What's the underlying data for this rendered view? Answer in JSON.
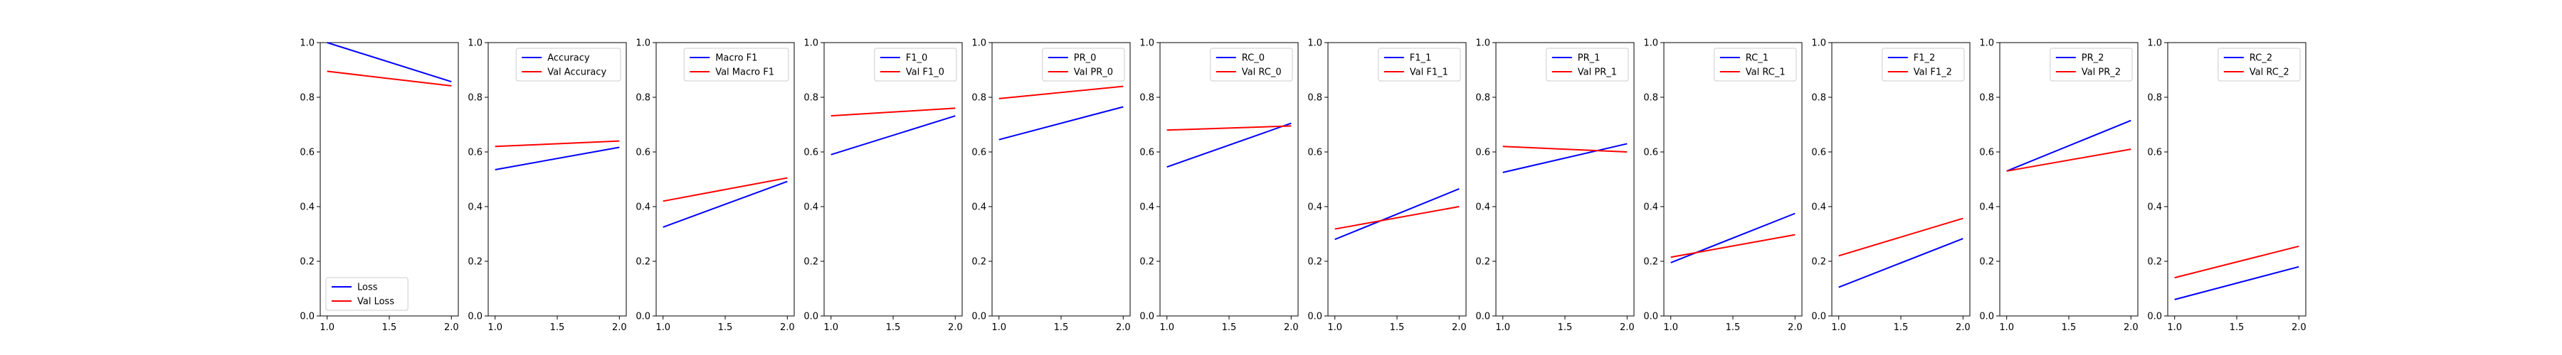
{
  "colors": {
    "train": "#0000ff",
    "val": "#ff0000"
  },
  "chart_data": [
    {
      "type": "line",
      "x": [
        1.0,
        2.0
      ],
      "xlim": [
        1.0,
        2.0
      ],
      "ylim": [
        0.0,
        1.0
      ],
      "legend_position": "lower-left",
      "series": [
        {
          "name": "Loss",
          "values": [
            1.0,
            0.857
          ]
        },
        {
          "name": "Val Loss",
          "values": [
            0.895,
            0.842
          ]
        }
      ]
    },
    {
      "type": "line",
      "x": [
        1.0,
        2.0
      ],
      "xlim": [
        1.0,
        2.0
      ],
      "ylim": [
        0.0,
        1.0
      ],
      "legend_position": "upper-right",
      "series": [
        {
          "name": "Accuracy",
          "values": [
            0.535,
            0.617
          ]
        },
        {
          "name": "Val Accuracy",
          "values": [
            0.62,
            0.64
          ]
        }
      ]
    },
    {
      "type": "line",
      "x": [
        1.0,
        2.0
      ],
      "xlim": [
        1.0,
        2.0
      ],
      "ylim": [
        0.0,
        1.0
      ],
      "legend_position": "upper-right",
      "series": [
        {
          "name": "Macro F1",
          "values": [
            0.325,
            0.492
          ]
        },
        {
          "name": "Val Macro F1",
          "values": [
            0.42,
            0.505
          ]
        }
      ]
    },
    {
      "type": "line",
      "x": [
        1.0,
        2.0
      ],
      "xlim": [
        1.0,
        2.0
      ],
      "ylim": [
        0.0,
        1.0
      ],
      "legend_position": "upper-right",
      "series": [
        {
          "name": "F1_0",
          "values": [
            0.59,
            0.732
          ]
        },
        {
          "name": "Val F1_0",
          "values": [
            0.732,
            0.76
          ]
        }
      ]
    },
    {
      "type": "line",
      "x": [
        1.0,
        2.0
      ],
      "xlim": [
        1.0,
        2.0
      ],
      "ylim": [
        0.0,
        1.0
      ],
      "legend_position": "upper-right",
      "series": [
        {
          "name": "PR_0",
          "values": [
            0.645,
            0.765
          ]
        },
        {
          "name": "Val PR_0",
          "values": [
            0.795,
            0.84
          ]
        }
      ]
    },
    {
      "type": "line",
      "x": [
        1.0,
        2.0
      ],
      "xlim": [
        1.0,
        2.0
      ],
      "ylim": [
        0.0,
        1.0
      ],
      "legend_position": "upper-right",
      "series": [
        {
          "name": "RC_0",
          "values": [
            0.545,
            0.705
          ]
        },
        {
          "name": "Val RC_0",
          "values": [
            0.68,
            0.695
          ]
        }
      ]
    },
    {
      "type": "line",
      "x": [
        1.0,
        2.0
      ],
      "xlim": [
        1.0,
        2.0
      ],
      "ylim": [
        0.0,
        1.0
      ],
      "legend_position": "upper-right",
      "series": [
        {
          "name": "F1_1",
          "values": [
            0.28,
            0.465
          ]
        },
        {
          "name": "Val F1_1",
          "values": [
            0.318,
            0.4
          ]
        }
      ]
    },
    {
      "type": "line",
      "x": [
        1.0,
        2.0
      ],
      "xlim": [
        1.0,
        2.0
      ],
      "ylim": [
        0.0,
        1.0
      ],
      "legend_position": "upper-right",
      "series": [
        {
          "name": "PR_1",
          "values": [
            0.525,
            0.63
          ]
        },
        {
          "name": "Val PR_1",
          "values": [
            0.62,
            0.6
          ]
        }
      ]
    },
    {
      "type": "line",
      "x": [
        1.0,
        2.0
      ],
      "xlim": [
        1.0,
        2.0
      ],
      "ylim": [
        0.0,
        1.0
      ],
      "legend_position": "upper-right",
      "series": [
        {
          "name": "RC_1",
          "values": [
            0.195,
            0.375
          ]
        },
        {
          "name": "Val RC_1",
          "values": [
            0.215,
            0.297
          ]
        }
      ]
    },
    {
      "type": "line",
      "x": [
        1.0,
        2.0
      ],
      "xlim": [
        1.0,
        2.0
      ],
      "ylim": [
        0.0,
        1.0
      ],
      "legend_position": "upper-right",
      "series": [
        {
          "name": "F1_2",
          "values": [
            0.105,
            0.283
          ]
        },
        {
          "name": "Val F1_2",
          "values": [
            0.22,
            0.357
          ]
        }
      ]
    },
    {
      "type": "line",
      "x": [
        1.0,
        2.0
      ],
      "xlim": [
        1.0,
        2.0
      ],
      "ylim": [
        0.0,
        1.0
      ],
      "legend_position": "upper-right",
      "series": [
        {
          "name": "PR_2",
          "values": [
            0.53,
            0.715
          ]
        },
        {
          "name": "Val PR_2",
          "values": [
            0.53,
            0.61
          ]
        }
      ]
    },
    {
      "type": "line",
      "x": [
        1.0,
        2.0
      ],
      "xlim": [
        1.0,
        2.0
      ],
      "ylim": [
        0.0,
        1.0
      ],
      "legend_position": "upper-right",
      "series": [
        {
          "name": "RC_2",
          "values": [
            0.06,
            0.18
          ]
        },
        {
          "name": "Val RC_2",
          "values": [
            0.14,
            0.255
          ]
        }
      ]
    }
  ],
  "axes": {
    "yticks": [
      "0.0",
      "0.2",
      "0.4",
      "0.6",
      "0.8",
      "1.0"
    ],
    "xticks": [
      "1.0",
      "1.5",
      "2.0"
    ]
  }
}
